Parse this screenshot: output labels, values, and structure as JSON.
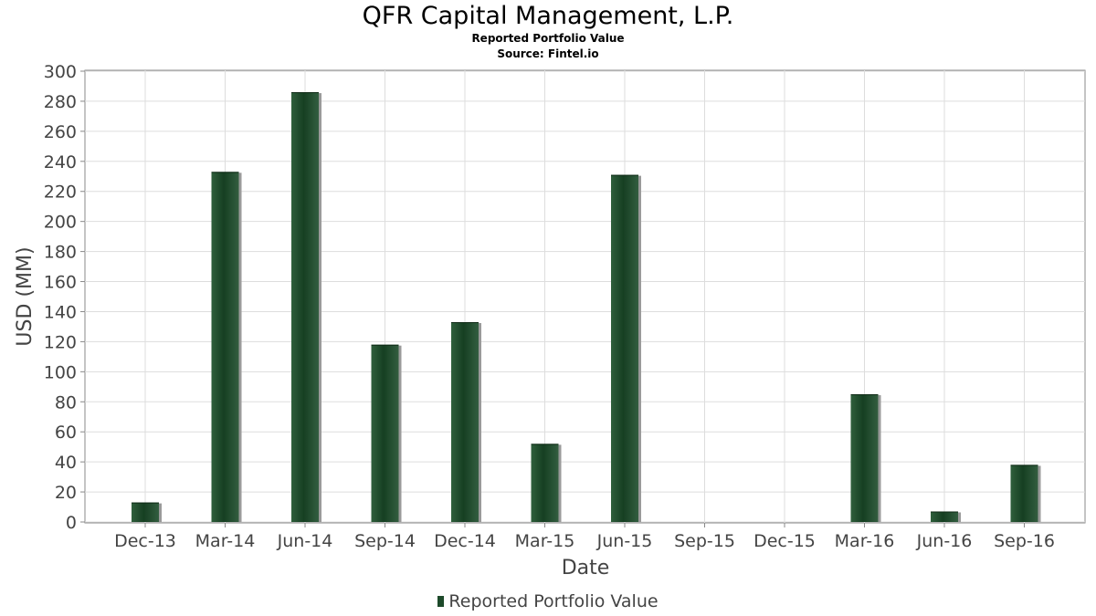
{
  "title": "QFR Capital Management, L.P.",
  "subtitle": "Reported Portfolio Value",
  "source": "Source: Fintel.io",
  "chart_data": {
    "type": "bar",
    "title": "QFR Capital Management, L.P.",
    "xlabel": "Date",
    "ylabel": "USD (MM)",
    "ylim": [
      0,
      300
    ],
    "yticks": [
      0,
      20,
      40,
      60,
      80,
      100,
      120,
      140,
      160,
      180,
      200,
      220,
      240,
      260,
      280,
      300
    ],
    "grid": true,
    "legend_position": "bottom",
    "categories": [
      "Dec-13",
      "Mar-14",
      "Jun-14",
      "Sep-14",
      "Dec-14",
      "Mar-15",
      "Jun-15",
      "Sep-15",
      "Dec-15",
      "Mar-16",
      "Jun-16",
      "Sep-16"
    ],
    "series": [
      {
        "name": "Reported Portfolio Value",
        "color": "#1d4a2a",
        "values": [
          13,
          233,
          286,
          118,
          133,
          52,
          231,
          0,
          0,
          85,
          7,
          38
        ]
      }
    ]
  }
}
